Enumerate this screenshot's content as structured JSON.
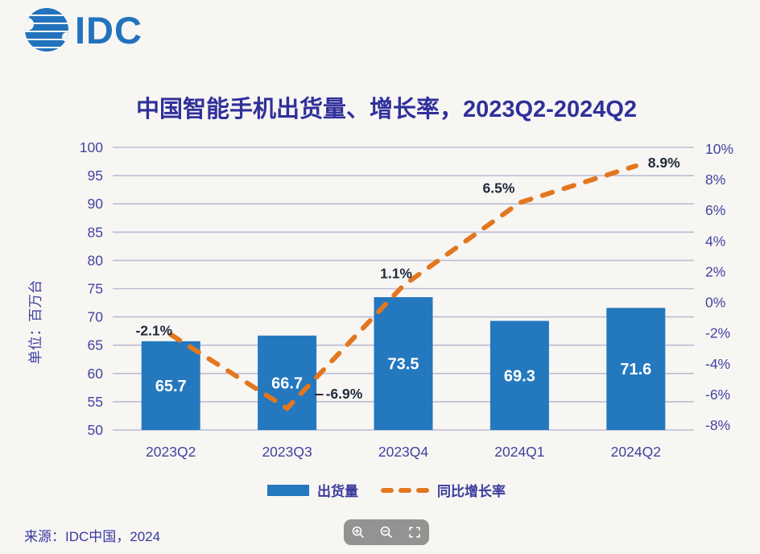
{
  "logo": {
    "text": "IDC"
  },
  "source": "来源：IDC中国，2024",
  "toolbar": {
    "icons": [
      "zoom-in",
      "zoom-out",
      "fit-to-screen"
    ]
  },
  "colors": {
    "background": "#f7f6f3",
    "bar": "#2478BE",
    "line": "#E2771F",
    "grid": "#BDBBD4",
    "axis": "#4343A1",
    "title": "#30309B",
    "annotation": "#212B3C",
    "bar_label": "#FFFFFF",
    "legend_text": "#3B3B9D",
    "logo_blue": "#2273BD",
    "toolbar_bg": "#7D7D7D"
  },
  "chart_data": {
    "type": "bar",
    "title": "中国智能手机出货量、增长率，2023Q2-2024Q2",
    "categories": [
      "2023Q2",
      "2023Q3",
      "2023Q4",
      "2024Q1",
      "2024Q2"
    ],
    "series": [
      {
        "name": "出货量",
        "type": "bar",
        "axis": "left",
        "values": [
          65.7,
          66.7,
          73.5,
          69.3,
          71.6
        ],
        "labels": [
          "65.7",
          "66.7",
          "73.5",
          "69.3",
          "71.6"
        ]
      },
      {
        "name": "同比增长率",
        "type": "line",
        "axis": "right",
        "values": [
          -2.1,
          -6.9,
          1.1,
          6.5,
          8.9
        ],
        "labels": [
          "-2.1%",
          "-6.9%",
          "1.1%",
          "6.5%",
          "8.9%"
        ]
      }
    ],
    "left_axis": {
      "label": "单位：百万台",
      "min": 50,
      "max": 100,
      "step": 5,
      "ticks": [
        "100",
        "95",
        "90",
        "85",
        "80",
        "75",
        "70",
        "65",
        "60",
        "55",
        "50"
      ]
    },
    "right_axis": {
      "min": -8,
      "max": 10,
      "step": 2,
      "ticks": [
        "10%",
        "8%",
        "6%",
        "4%",
        "2%",
        "0%",
        "-2%",
        "-4%",
        "-6%",
        "-8%"
      ]
    },
    "grid": true,
    "legend_position": "bottom"
  }
}
